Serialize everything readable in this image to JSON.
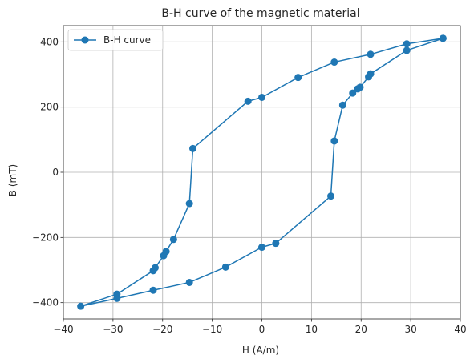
{
  "chart_data": {
    "type": "line",
    "title": "B-H curve of the magnetic material",
    "xlabel": "H (A/m)",
    "ylabel": "B (mT)",
    "xlim": [
      -40,
      40
    ],
    "ylim": [
      -450,
      450
    ],
    "xticks": [
      -40,
      -30,
      -20,
      -10,
      0,
      10,
      20,
      30,
      40
    ],
    "yticks": [
      -400,
      -200,
      0,
      200,
      400
    ],
    "grid": true,
    "legend": "top-left",
    "series": [
      {
        "name": "B-H curve",
        "color": "#1f77b4",
        "marker": "circle",
        "points": [
          [
            36.5,
            411
          ],
          [
            29.2,
            394
          ],
          [
            21.9,
            362
          ],
          [
            14.6,
            338
          ],
          [
            7.3,
            291
          ],
          [
            0.0,
            230
          ],
          [
            -2.8,
            218
          ],
          [
            -13.9,
            73
          ],
          [
            -14.6,
            -96
          ],
          [
            -17.8,
            -206
          ],
          [
            -19.3,
            -243
          ],
          [
            -19.8,
            -256
          ],
          [
            -21.5,
            -293
          ],
          [
            -21.9,
            -302
          ],
          [
            -29.2,
            -374
          ],
          [
            -36.5,
            -411
          ],
          [
            -29.2,
            -387
          ],
          [
            -21.9,
            -362
          ],
          [
            -14.6,
            -338
          ],
          [
            -7.3,
            -291
          ],
          [
            0.0,
            -230
          ],
          [
            2.8,
            -218
          ],
          [
            13.9,
            -73
          ],
          [
            14.6,
            96
          ],
          [
            16.3,
            206
          ],
          [
            18.3,
            243
          ],
          [
            19.3,
            256
          ],
          [
            19.8,
            261
          ],
          [
            21.5,
            293
          ],
          [
            21.9,
            302
          ],
          [
            29.2,
            374
          ],
          [
            36.5,
            411
          ]
        ]
      }
    ]
  }
}
